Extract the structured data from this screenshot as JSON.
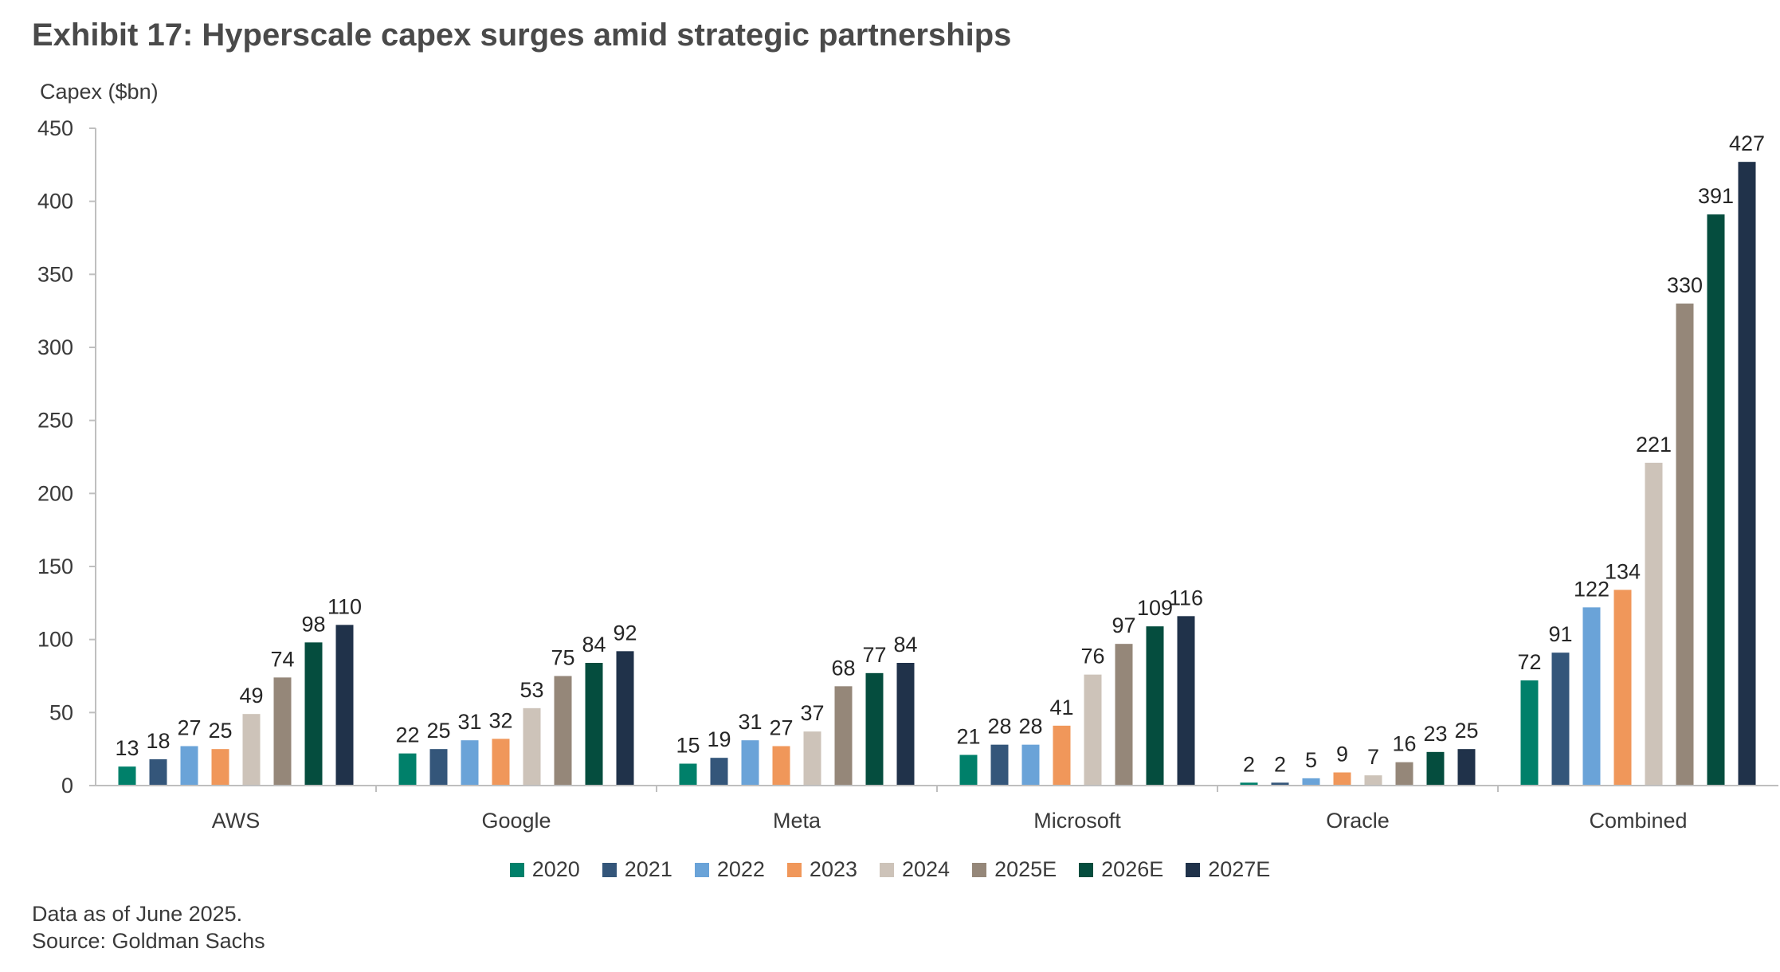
{
  "header": {
    "title": "Exhibit 17: Hyperscale capex surges amid strategic partnerships"
  },
  "footer": {
    "note": "Data as of June 2025.",
    "source": "Source: Goldman Sachs"
  },
  "chart_data": {
    "type": "bar",
    "title": "Exhibit 17: Hyperscale capex surges amid strategic partnerships",
    "xlabel": "",
    "ylabel": "Capex ($bn)",
    "ylim": [
      0,
      450
    ],
    "yticks": [
      0,
      50,
      100,
      150,
      200,
      250,
      300,
      350,
      400,
      450
    ],
    "grid": false,
    "legend_position": "bottom-center",
    "categories": [
      "AWS",
      "Google",
      "Meta",
      "Microsoft",
      "Oracle",
      "Combined"
    ],
    "series": [
      {
        "name": "2020",
        "color": "#00806a",
        "values": [
          13,
          22,
          15,
          21,
          2,
          72
        ]
      },
      {
        "name": "2021",
        "color": "#34567a",
        "values": [
          18,
          25,
          19,
          28,
          2,
          91
        ]
      },
      {
        "name": "2022",
        "color": "#6aa3d8",
        "values": [
          27,
          31,
          31,
          28,
          5,
          122
        ]
      },
      {
        "name": "2023",
        "color": "#f0975a",
        "values": [
          25,
          32,
          27,
          41,
          9,
          134
        ]
      },
      {
        "name": "2024",
        "color": "#cdc3b9",
        "values": [
          49,
          53,
          37,
          76,
          7,
          221
        ]
      },
      {
        "name": "2025E",
        "color": "#958779",
        "values": [
          74,
          75,
          68,
          97,
          16,
          330
        ]
      },
      {
        "name": "2026E",
        "color": "#054d3e",
        "values": [
          98,
          84,
          77,
          109,
          23,
          391
        ]
      },
      {
        "name": "2027E",
        "color": "#20324a",
        "values": [
          110,
          92,
          84,
          116,
          25,
          427
        ]
      }
    ]
  }
}
